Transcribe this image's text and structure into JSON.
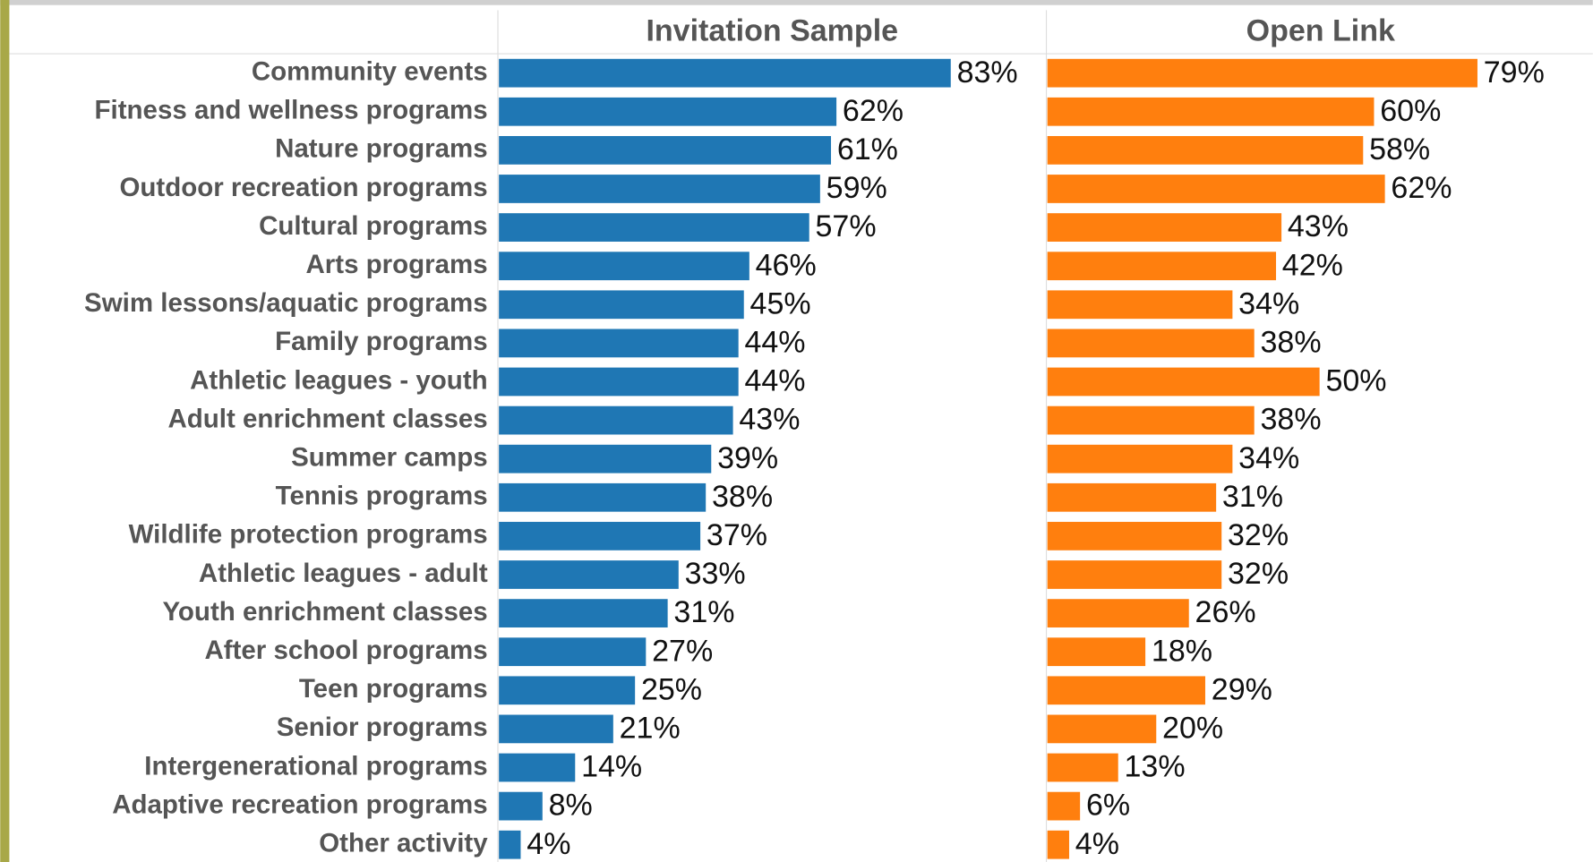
{
  "chart_data": {
    "type": "bar",
    "categories": [
      "Community events",
      "Fitness and wellness programs",
      "Nature programs",
      "Outdoor recreation programs",
      "Cultural programs",
      "Arts programs",
      "Swim lessons/aquatic programs",
      "Family programs",
      "Athletic leagues - youth",
      "Adult enrichment classes",
      "Summer camps",
      "Tennis programs",
      "Wildlife protection programs",
      "Athletic leagues - adult",
      "Youth enrichment classes",
      "After school programs",
      "Teen programs",
      "Senior programs",
      "Intergenerational programs",
      "Adaptive recreation programs",
      "Other activity"
    ],
    "series": [
      {
        "name": "Invitation Sample",
        "color": "#1f77b4",
        "values": [
          83,
          62,
          61,
          59,
          57,
          46,
          45,
          44,
          44,
          43,
          39,
          38,
          37,
          33,
          31,
          27,
          25,
          21,
          14,
          8,
          4
        ],
        "value_labels": [
          "83%",
          "62%",
          "61%",
          "59%",
          "57%",
          "46%",
          "45%",
          "44%",
          "44%",
          "43%",
          "39%",
          "38%",
          "37%",
          "33%",
          "31%",
          "27%",
          "25%",
          "21%",
          "14%",
          "8%",
          "4%"
        ]
      },
      {
        "name": "Open Link",
        "color": "#ff7f0e",
        "values": [
          79,
          60,
          58,
          62,
          43,
          42,
          34,
          38,
          50,
          38,
          34,
          31,
          32,
          32,
          26,
          18,
          29,
          20,
          13,
          6,
          4
        ],
        "value_labels": [
          "79%",
          "60%",
          "58%",
          "62%",
          "43%",
          "42%",
          "34%",
          "38%",
          "50%",
          "38%",
          "34%",
          "31%",
          "32%",
          "32%",
          "26%",
          "18%",
          "29%",
          "20%",
          "13%",
          "6%",
          "4%"
        ]
      }
    ],
    "xlim": [
      0,
      100
    ]
  }
}
